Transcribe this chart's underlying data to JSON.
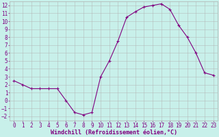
{
  "x": [
    0,
    1,
    2,
    3,
    4,
    5,
    6,
    7,
    8,
    9,
    10,
    11,
    12,
    13,
    14,
    15,
    16,
    17,
    18,
    19,
    20,
    21,
    22,
    23
  ],
  "y": [
    2.5,
    2.0,
    1.5,
    1.5,
    1.5,
    1.5,
    0.0,
    -1.5,
    -1.8,
    -1.5,
    3.0,
    5.0,
    7.5,
    10.5,
    11.2,
    11.8,
    12.0,
    12.2,
    11.5,
    9.5,
    8.0,
    6.0,
    3.5,
    3.2
  ],
  "line_color": "#800080",
  "marker": "+",
  "marker_size": 3,
  "bg_color": "#c8f0ea",
  "grid_color": "#b0b0b0",
  "xlabel": "Windchill (Refroidissement éolien,°C)",
  "tick_color": "#800080",
  "label_color": "#800080",
  "ylim": [
    -2.5,
    12.5
  ],
  "xlim": [
    -0.5,
    23.5
  ],
  "yticks": [
    -2,
    -1,
    0,
    1,
    2,
    3,
    4,
    5,
    6,
    7,
    8,
    9,
    10,
    11,
    12
  ],
  "xticks": [
    0,
    1,
    2,
    3,
    4,
    5,
    6,
    7,
    8,
    9,
    10,
    11,
    12,
    13,
    14,
    15,
    16,
    17,
    18,
    19,
    20,
    21,
    22,
    23
  ],
  "tick_fontsize": 5.5,
  "xlabel_fontsize": 6.0
}
